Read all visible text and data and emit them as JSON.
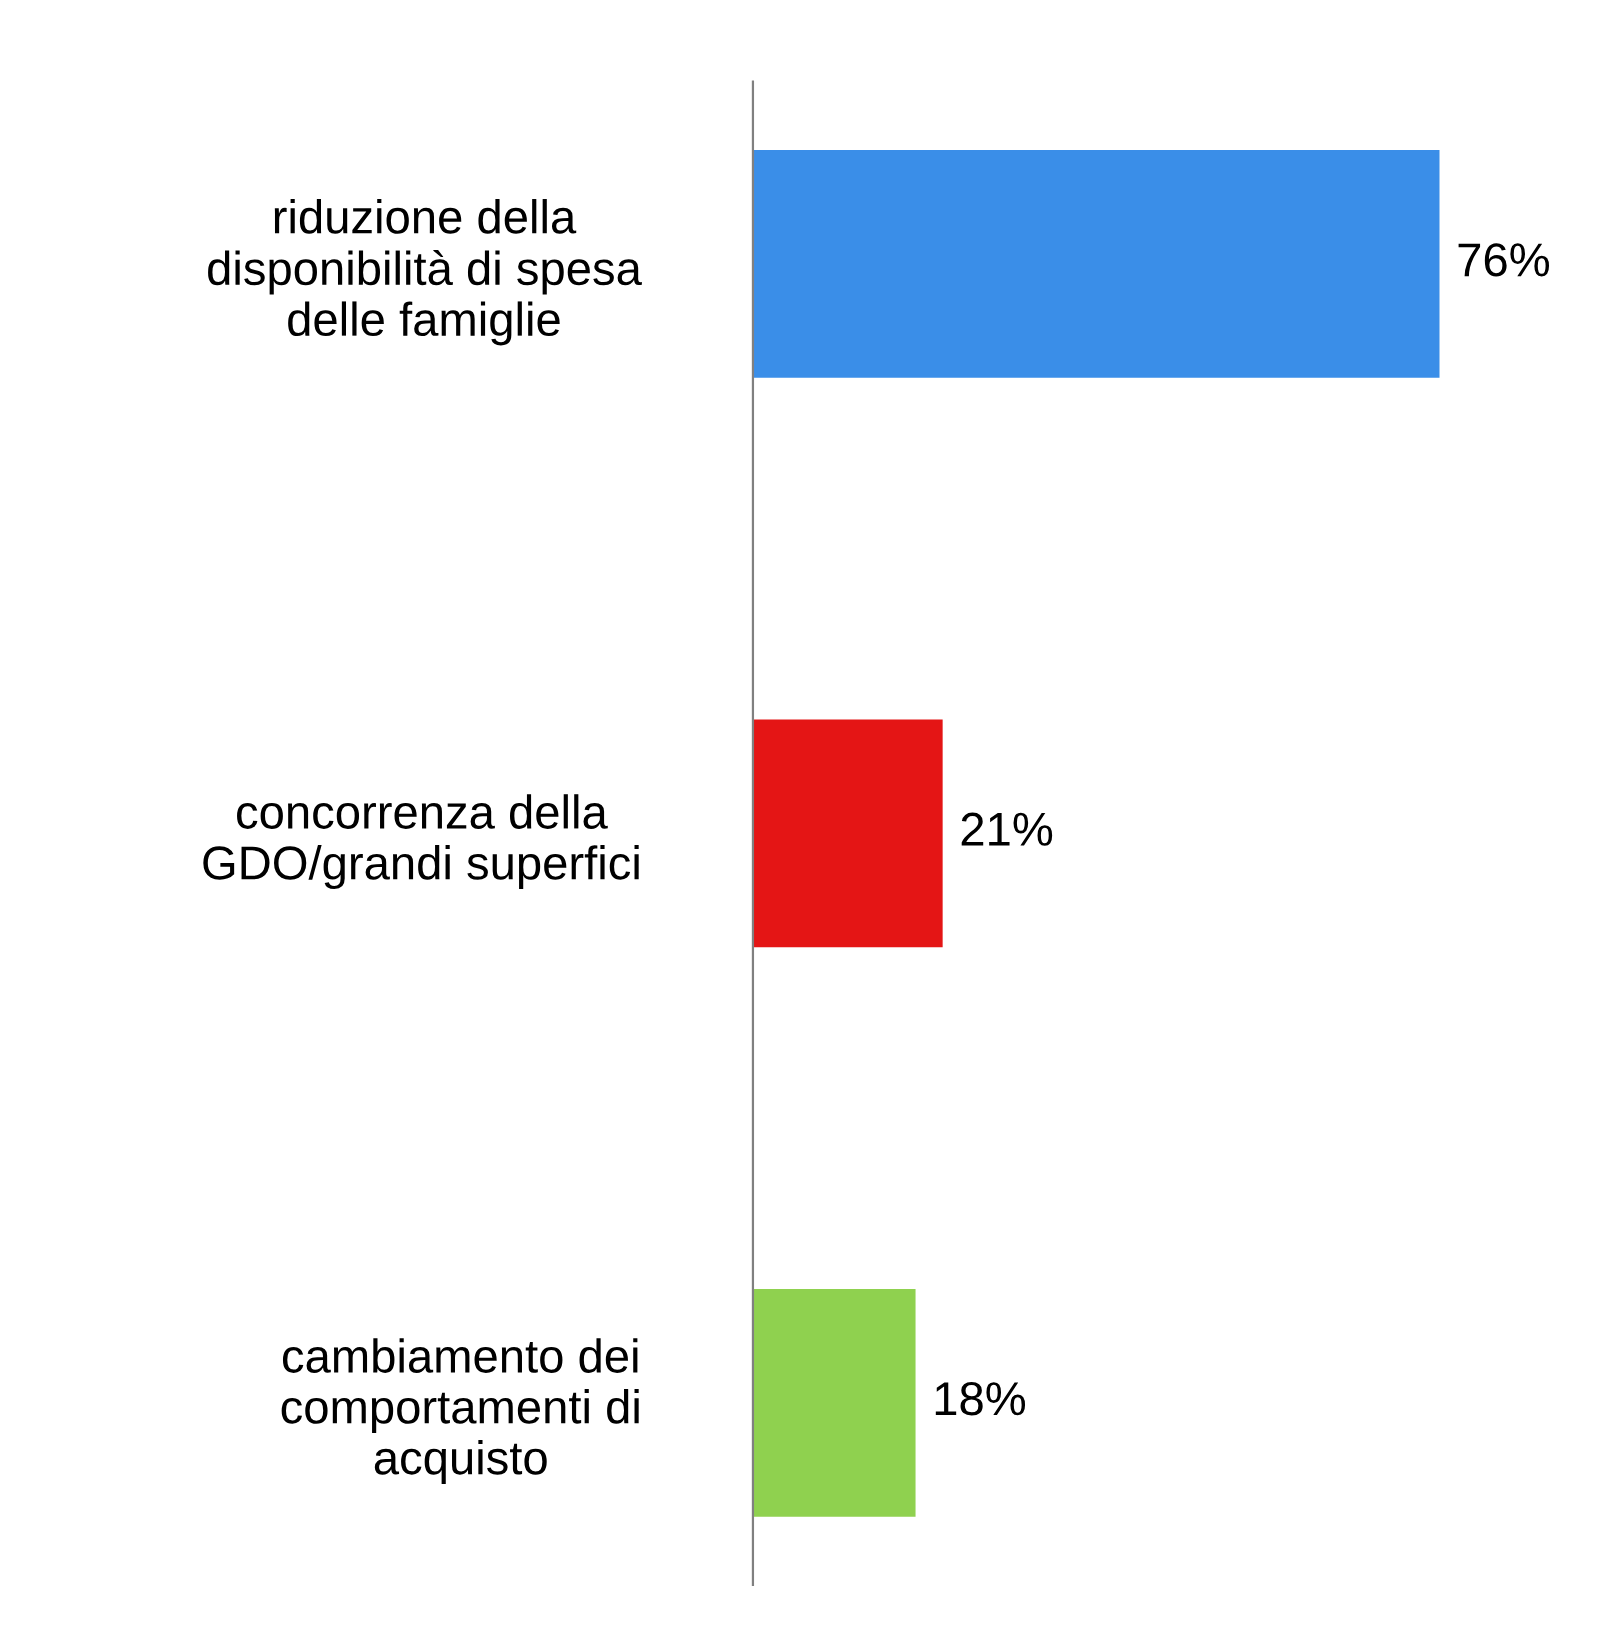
{
  "chart_data": {
    "type": "bar",
    "orientation": "horizontal",
    "categories": [
      "riduzione della\ndisponibilità di spesa\ndelle famiglie",
      "concorrenza della\nGDO/grandi superfici",
      "cambiamento dei\ncomportamenti di\nacquisto"
    ],
    "values": [
      76,
      21,
      18
    ],
    "colors": [
      "#3a8ee8",
      "#e41515",
      "#8fd14f"
    ],
    "value_labels": [
      "76%",
      "21%",
      "18%"
    ]
  }
}
